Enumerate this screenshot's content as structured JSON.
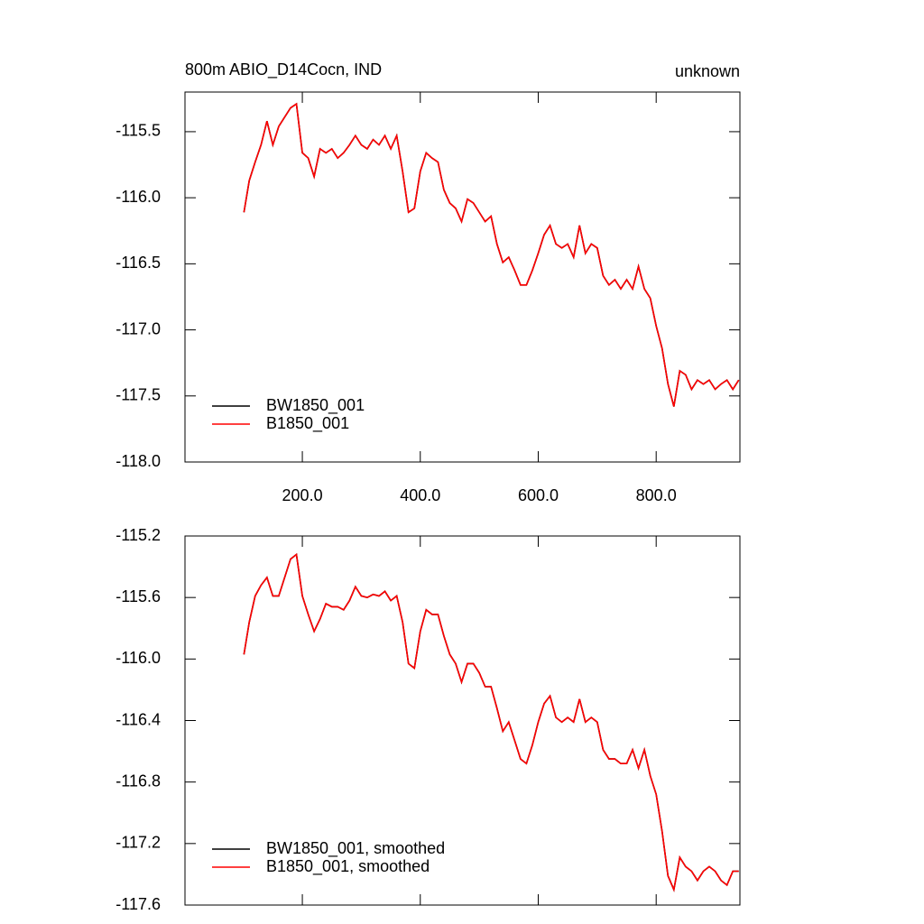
{
  "chart_data": [
    {
      "type": "line",
      "title": "800m ABIO_D14Cocn, IND",
      "subtitle": "unknown",
      "x": [
        101,
        110,
        120,
        130,
        140,
        150,
        160,
        170,
        180,
        190,
        200,
        210,
        220,
        230,
        240,
        250,
        260,
        270,
        280,
        290,
        300,
        310,
        320,
        330,
        340,
        350,
        360,
        370,
        380,
        390,
        400,
        410,
        420,
        430,
        440,
        450,
        460,
        470,
        480,
        490,
        500,
        510,
        520,
        530,
        540,
        550,
        560,
        570,
        580,
        590,
        600,
        610,
        620,
        630,
        640,
        650,
        660,
        670,
        680,
        690,
        700,
        710,
        720,
        730,
        740,
        750,
        760,
        770,
        780,
        790,
        800,
        810,
        820,
        830,
        840,
        850,
        860,
        870,
        880,
        890,
        900,
        910,
        920,
        930,
        940
      ],
      "series": [
        {
          "name": "BW1850_001",
          "color": "#000000",
          "values": [
            -116.11,
            -115.87,
            -115.73,
            -115.6,
            -115.42,
            -115.6,
            -115.46,
            -115.39,
            -115.32,
            -115.29,
            -115.66,
            -115.7,
            -115.84,
            -115.63,
            -115.66,
            -115.63,
            -115.7,
            -115.66,
            -115.6,
            -115.53,
            -115.6,
            -115.63,
            -115.56,
            -115.6,
            -115.53,
            -115.63,
            -115.53,
            -115.8,
            -116.11,
            -116.08,
            -115.8,
            -115.66,
            -115.7,
            -115.73,
            -115.94,
            -116.04,
            -116.08,
            -116.18,
            -116.01,
            -116.04,
            -116.11,
            -116.18,
            -116.14,
            -116.35,
            -116.49,
            -116.45,
            -116.55,
            -116.66,
            -116.66,
            -116.55,
            -116.42,
            -116.28,
            -116.21,
            -116.35,
            -116.38,
            -116.35,
            -116.45,
            -116.21,
            -116.42,
            -116.35,
            -116.38,
            -116.59,
            -116.66,
            -116.62,
            -116.69,
            -116.62,
            -116.69,
            -116.52,
            -116.69,
            -116.76,
            -116.97,
            -117.14,
            -117.41,
            -117.58,
            -117.31,
            -117.34,
            -117.45,
            -117.38,
            -117.41,
            -117.38,
            -117.45,
            -117.41,
            -117.38,
            -117.45,
            -117.38
          ]
        },
        {
          "name": "B1850_001",
          "color": "#ff0000",
          "values": [
            -116.11,
            -115.87,
            -115.73,
            -115.6,
            -115.42,
            -115.6,
            -115.46,
            -115.39,
            -115.32,
            -115.29,
            -115.66,
            -115.7,
            -115.84,
            -115.63,
            -115.66,
            -115.63,
            -115.7,
            -115.66,
            -115.6,
            -115.53,
            -115.6,
            -115.63,
            -115.56,
            -115.6,
            -115.53,
            -115.63,
            -115.53,
            -115.8,
            -116.11,
            -116.08,
            -115.8,
            -115.66,
            -115.7,
            -115.73,
            -115.94,
            -116.04,
            -116.08,
            -116.18,
            -116.01,
            -116.04,
            -116.11,
            -116.18,
            -116.14,
            -116.35,
            -116.49,
            -116.45,
            -116.55,
            -116.66,
            -116.66,
            -116.55,
            -116.42,
            -116.28,
            -116.21,
            -116.35,
            -116.38,
            -116.35,
            -116.45,
            -116.21,
            -116.42,
            -116.35,
            -116.38,
            -116.59,
            -116.66,
            -116.62,
            -116.69,
            -116.62,
            -116.69,
            -116.52,
            -116.69,
            -116.76,
            -116.97,
            -117.14,
            -117.41,
            -117.58,
            -117.31,
            -117.34,
            -117.45,
            -117.38,
            -117.41,
            -117.38,
            -117.45,
            -117.41,
            -117.38,
            -117.45,
            -117.38
          ]
        }
      ],
      "xlim": [
        1,
        942
      ],
      "xticks": [
        {
          "value": 200,
          "label": "200.0"
        },
        {
          "value": 400,
          "label": "400.0"
        },
        {
          "value": 600,
          "label": "600.0"
        },
        {
          "value": 800,
          "label": "800.0"
        }
      ],
      "ylim": [
        -118,
        -115.2
      ],
      "yticks": [
        {
          "value": -118,
          "label": "-118.0"
        },
        -117.5,
        {
          "value": -117,
          "label": "-117.0"
        },
        -116.5,
        {
          "value": -116,
          "label": "-116.0"
        },
        -115.5
      ],
      "legend": "bottom-left"
    },
    {
      "type": "line",
      "x": [
        101,
        110,
        120,
        130,
        140,
        150,
        160,
        170,
        180,
        190,
        200,
        210,
        220,
        230,
        240,
        250,
        260,
        270,
        280,
        290,
        300,
        310,
        320,
        330,
        340,
        350,
        360,
        370,
        380,
        390,
        400,
        410,
        420,
        430,
        440,
        450,
        460,
        470,
        480,
        490,
        500,
        510,
        520,
        530,
        540,
        550,
        560,
        570,
        580,
        590,
        600,
        610,
        620,
        630,
        640,
        650,
        660,
        670,
        680,
        690,
        700,
        710,
        720,
        730,
        740,
        750,
        760,
        770,
        780,
        790,
        800,
        810,
        820,
        830,
        840,
        850,
        860,
        870,
        880,
        890,
        900,
        910,
        920,
        930,
        940
      ],
      "series": [
        {
          "name": "BW1850_001, smoothed",
          "color": "#000000",
          "values": [
            -115.97,
            -115.76,
            -115.59,
            -115.52,
            -115.47,
            -115.59,
            -115.59,
            -115.47,
            -115.35,
            -115.32,
            -115.59,
            -115.71,
            -115.82,
            -115.74,
            -115.64,
            -115.66,
            -115.66,
            -115.68,
            -115.62,
            -115.53,
            -115.59,
            -115.6,
            -115.58,
            -115.59,
            -115.56,
            -115.62,
            -115.59,
            -115.76,
            -116.03,
            -116.06,
            -115.82,
            -115.68,
            -115.71,
            -115.71,
            -115.85,
            -115.97,
            -116.03,
            -116.15,
            -116.03,
            -116.03,
            -116.09,
            -116.18,
            -116.18,
            -116.32,
            -116.47,
            -116.41,
            -116.53,
            -116.65,
            -116.68,
            -116.56,
            -116.41,
            -116.29,
            -116.24,
            -116.38,
            -116.41,
            -116.38,
            -116.41,
            -116.26,
            -116.41,
            -116.38,
            -116.41,
            -116.59,
            -116.65,
            -116.65,
            -116.68,
            -116.68,
            -116.59,
            -116.71,
            -116.59,
            -116.76,
            -116.88,
            -117.12,
            -117.41,
            -117.5,
            -117.29,
            -117.35,
            -117.38,
            -117.44,
            -117.38,
            -117.35,
            -117.38,
            -117.44,
            -117.47,
            -117.38,
            -117.38
          ]
        },
        {
          "name": "B1850_001, smoothed",
          "color": "#ff0000",
          "values": [
            -115.97,
            -115.76,
            -115.59,
            -115.52,
            -115.47,
            -115.59,
            -115.59,
            -115.47,
            -115.35,
            -115.32,
            -115.59,
            -115.71,
            -115.82,
            -115.74,
            -115.64,
            -115.66,
            -115.66,
            -115.68,
            -115.62,
            -115.53,
            -115.59,
            -115.6,
            -115.58,
            -115.59,
            -115.56,
            -115.62,
            -115.59,
            -115.76,
            -116.03,
            -116.06,
            -115.82,
            -115.68,
            -115.71,
            -115.71,
            -115.85,
            -115.97,
            -116.03,
            -116.15,
            -116.03,
            -116.03,
            -116.09,
            -116.18,
            -116.18,
            -116.32,
            -116.47,
            -116.41,
            -116.53,
            -116.65,
            -116.68,
            -116.56,
            -116.41,
            -116.29,
            -116.24,
            -116.38,
            -116.41,
            -116.38,
            -116.41,
            -116.26,
            -116.41,
            -116.38,
            -116.41,
            -116.59,
            -116.65,
            -116.65,
            -116.68,
            -116.68,
            -116.59,
            -116.71,
            -116.59,
            -116.76,
            -116.88,
            -117.12,
            -117.41,
            -117.5,
            -117.29,
            -117.35,
            -117.38,
            -117.44,
            -117.38,
            -117.35,
            -117.38,
            -117.44,
            -117.47,
            -117.38,
            -117.38
          ]
        }
      ],
      "xlim": [
        1,
        942
      ],
      "xticks": [
        200,
        400,
        600,
        800
      ],
      "ylim": [
        -117.6,
        -115.2
      ],
      "yticks": [
        -117.6,
        -117.2,
        -116.8,
        -116.4,
        {
          "value": -116,
          "label": "-116.0"
        },
        -115.6,
        -115.2
      ],
      "legend": "bottom-left"
    }
  ]
}
